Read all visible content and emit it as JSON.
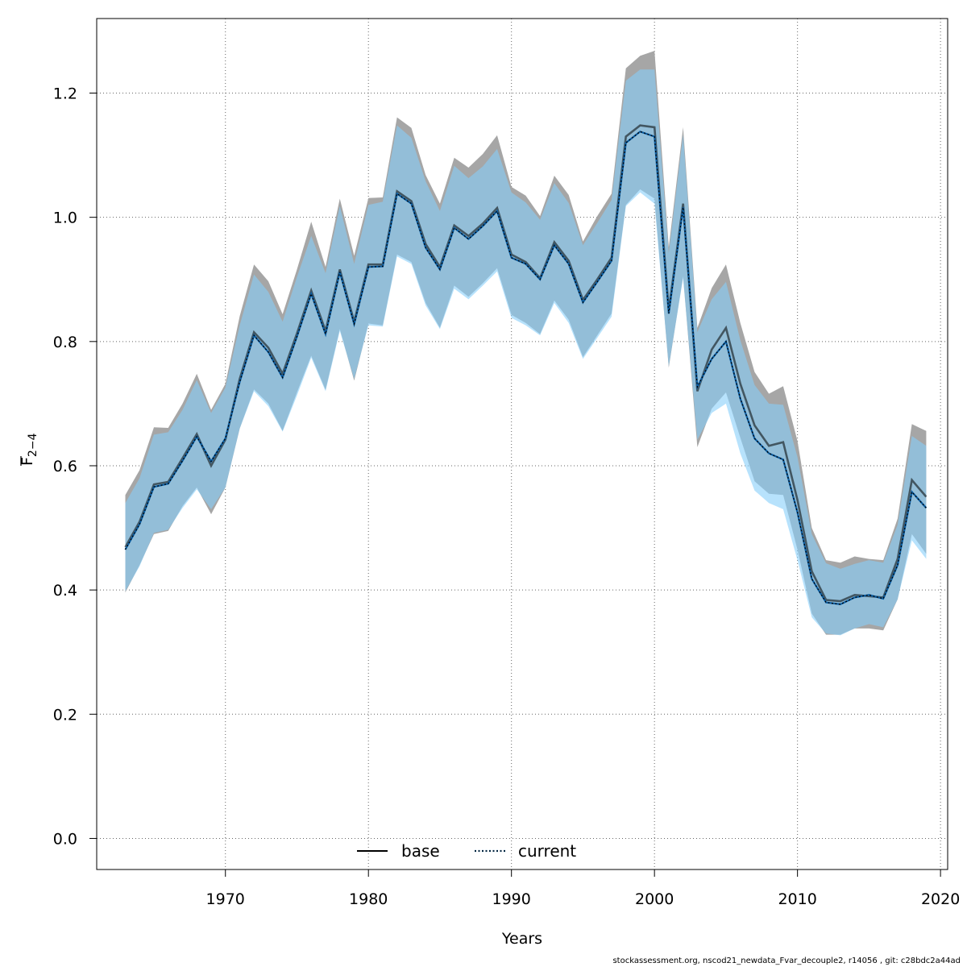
{
  "colors": {
    "base_band": "#a6a6a6",
    "current_band": "#87cefa",
    "base_line": "#000000",
    "current_line": "#0b5fa5",
    "grid": "#666666"
  },
  "chart_data": {
    "type": "line",
    "xlabel": "Years",
    "ylabel_main": "F",
    "ylabel_sub": "2−4",
    "xlim": [
      1961,
      2020.5
    ],
    "ylim": [
      -0.05,
      1.32
    ],
    "xticks": [
      1970,
      1980,
      1990,
      2000,
      2010,
      2020
    ],
    "yticks": [
      0.0,
      0.2,
      0.4,
      0.6,
      0.8,
      1.0,
      1.2
    ],
    "ytick_labels": [
      "0.0",
      "0.2",
      "0.4",
      "0.6",
      "0.8",
      "1.0",
      "1.2"
    ],
    "grid": true,
    "legend_position": "bottom-center",
    "x": [
      1963,
      1964,
      1965,
      1966,
      1967,
      1968,
      1969,
      1970,
      1971,
      1972,
      1973,
      1974,
      1975,
      1976,
      1977,
      1978,
      1979,
      1980,
      1981,
      1982,
      1983,
      1984,
      1985,
      1986,
      1987,
      1988,
      1989,
      1990,
      1991,
      1992,
      1993,
      1994,
      1995,
      1996,
      1997,
      1998,
      1999,
      2000,
      2001,
      2002,
      2003,
      2004,
      2005,
      2006,
      2007,
      2008,
      2009,
      2010,
      2011,
      2012,
      2013,
      2014,
      2015,
      2016,
      2017,
      2018,
      2019
    ],
    "series": [
      {
        "name": "base",
        "style": "solid",
        "values": [
          0.469,
          0.51,
          0.57,
          0.574,
          0.612,
          0.651,
          0.6,
          0.642,
          0.74,
          0.815,
          0.79,
          0.748,
          0.813,
          0.882,
          0.817,
          0.916,
          0.832,
          0.924,
          0.924,
          1.042,
          1.026,
          0.957,
          0.92,
          0.987,
          0.97,
          0.99,
          1.015,
          0.94,
          0.928,
          0.902,
          0.96,
          0.93,
          0.867,
          0.9,
          0.935,
          1.13,
          1.148,
          1.145,
          0.85,
          1.022,
          0.72,
          0.787,
          0.822,
          0.732,
          0.665,
          0.632,
          0.638,
          0.545,
          0.43,
          0.384,
          0.382,
          0.392,
          0.39,
          0.388,
          0.45,
          0.577,
          0.55
        ],
        "lower": [
          0.396,
          0.44,
          0.49,
          0.495,
          0.535,
          0.565,
          0.522,
          0.565,
          0.66,
          0.723,
          0.7,
          0.656,
          0.718,
          0.777,
          0.722,
          0.82,
          0.737,
          0.829,
          0.826,
          0.94,
          0.928,
          0.862,
          0.822,
          0.89,
          0.872,
          0.894,
          0.918,
          0.843,
          0.83,
          0.812,
          0.866,
          0.835,
          0.775,
          0.81,
          0.845,
          1.02,
          1.045,
          1.03,
          0.758,
          0.905,
          0.63,
          0.692,
          0.718,
          0.645,
          0.575,
          0.555,
          0.553,
          0.465,
          0.362,
          0.328,
          0.328,
          0.338,
          0.338,
          0.335,
          0.385,
          0.49,
          0.458
        ],
        "upper": [
          0.553,
          0.593,
          0.662,
          0.661,
          0.7,
          0.748,
          0.69,
          0.732,
          0.841,
          0.924,
          0.897,
          0.844,
          0.916,
          0.993,
          0.92,
          1.03,
          0.938,
          1.031,
          1.032,
          1.161,
          1.144,
          1.068,
          1.022,
          1.096,
          1.08,
          1.102,
          1.132,
          1.049,
          1.035,
          1.002,
          1.067,
          1.036,
          0.961,
          1.002,
          1.038,
          1.24,
          1.26,
          1.268,
          0.952,
          1.145,
          0.822,
          0.886,
          0.924,
          0.83,
          0.751,
          0.716,
          0.728,
          0.64,
          0.5,
          0.448,
          0.444,
          0.454,
          0.45,
          0.448,
          0.515,
          0.667,
          0.656
        ]
      },
      {
        "name": "current",
        "style": "dotted",
        "values": [
          0.465,
          0.506,
          0.566,
          0.571,
          0.608,
          0.647,
          0.607,
          0.644,
          0.735,
          0.81,
          0.783,
          0.742,
          0.808,
          0.877,
          0.812,
          0.912,
          0.828,
          0.92,
          0.921,
          1.038,
          1.022,
          0.951,
          0.916,
          0.983,
          0.965,
          0.986,
          1.01,
          0.935,
          0.925,
          0.9,
          0.955,
          0.925,
          0.863,
          0.896,
          0.93,
          1.12,
          1.138,
          1.13,
          0.845,
          1.016,
          0.727,
          0.772,
          0.8,
          0.708,
          0.644,
          0.62,
          0.61,
          0.525,
          0.418,
          0.38,
          0.377,
          0.388,
          0.392,
          0.386,
          0.44,
          0.558,
          0.532
        ],
        "lower": [
          0.398,
          0.438,
          0.492,
          0.497,
          0.532,
          0.562,
          0.53,
          0.565,
          0.66,
          0.72,
          0.696,
          0.655,
          0.713,
          0.774,
          0.72,
          0.817,
          0.74,
          0.826,
          0.824,
          0.937,
          0.925,
          0.858,
          0.82,
          0.885,
          0.868,
          0.89,
          0.913,
          0.838,
          0.826,
          0.81,
          0.862,
          0.83,
          0.772,
          0.806,
          0.84,
          1.018,
          1.04,
          1.022,
          0.76,
          0.902,
          0.642,
          0.685,
          0.7,
          0.62,
          0.56,
          0.54,
          0.53,
          0.448,
          0.356,
          0.33,
          0.327,
          0.338,
          0.345,
          0.34,
          0.385,
          0.48,
          0.45
        ],
        "upper": [
          0.54,
          0.58,
          0.65,
          0.654,
          0.69,
          0.738,
          0.685,
          0.726,
          0.826,
          0.908,
          0.88,
          0.832,
          0.904,
          0.97,
          0.91,
          1.018,
          0.925,
          1.02,
          1.025,
          1.148,
          1.128,
          1.058,
          1.01,
          1.083,
          1.063,
          1.082,
          1.11,
          1.04,
          1.024,
          0.996,
          1.055,
          1.023,
          0.955,
          0.991,
          1.028,
          1.22,
          1.238,
          1.238,
          0.942,
          1.133,
          0.815,
          0.868,
          0.896,
          0.802,
          0.73,
          0.7,
          0.698,
          0.614,
          0.49,
          0.443,
          0.434,
          0.442,
          0.448,
          0.444,
          0.505,
          0.648,
          0.632
        ]
      }
    ]
  },
  "legend": {
    "base_label": "base",
    "current_label": "current"
  },
  "footer": "stockassessment.org, nscod21_newdata_Fvar_decouple2, r14056 , git: c28bdc2a44ad"
}
